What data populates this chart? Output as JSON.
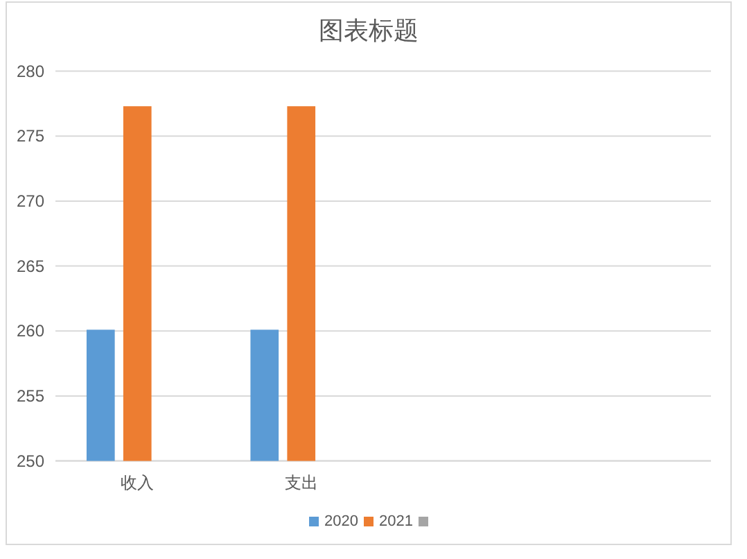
{
  "chart_data": {
    "type": "bar",
    "title": "图表标题",
    "categories": [
      "收入",
      "支出",
      null,
      null
    ],
    "series": [
      {
        "name": "2020",
        "color": "#5b9bd5",
        "values": [
          260.1,
          260.1,
          null,
          null
        ]
      },
      {
        "name": "2021",
        "color": "#ed7d31",
        "values": [
          277.3,
          277.3,
          null,
          null
        ]
      },
      {
        "color": "#a5a5a5",
        "values": [
          null,
          null,
          null,
          null
        ]
      }
    ],
    "ylim": [
      250,
      280
    ],
    "yticks": [
      250,
      255,
      260,
      265,
      270,
      275,
      280
    ],
    "grid": "y",
    "legend": "bottom"
  }
}
